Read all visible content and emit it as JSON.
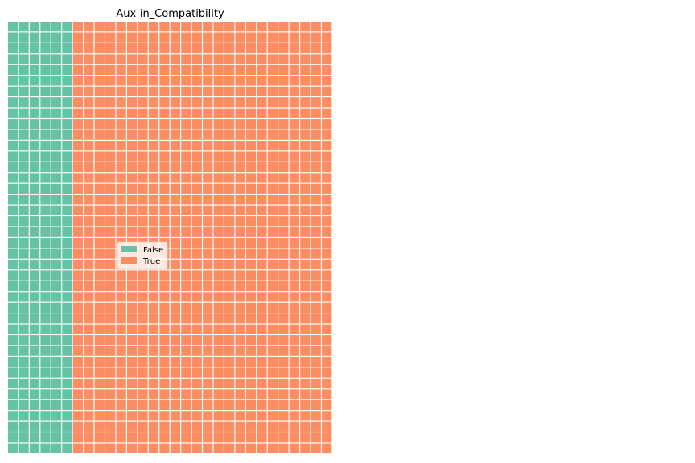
{
  "chart_data": {
    "type": "waffle",
    "title": "Aux-in_Compatibility",
    "categories": [
      "False",
      "True"
    ],
    "values": [
      240,
      1200
    ],
    "colors": [
      "#66c2a5",
      "#fc8d62"
    ],
    "grid": {
      "rows": 40,
      "columns": 30
    },
    "fill_order": "column-wise, bottom to top, left to right",
    "legend": {
      "placement": "center-left",
      "entries": [
        "False",
        "True"
      ]
    }
  }
}
